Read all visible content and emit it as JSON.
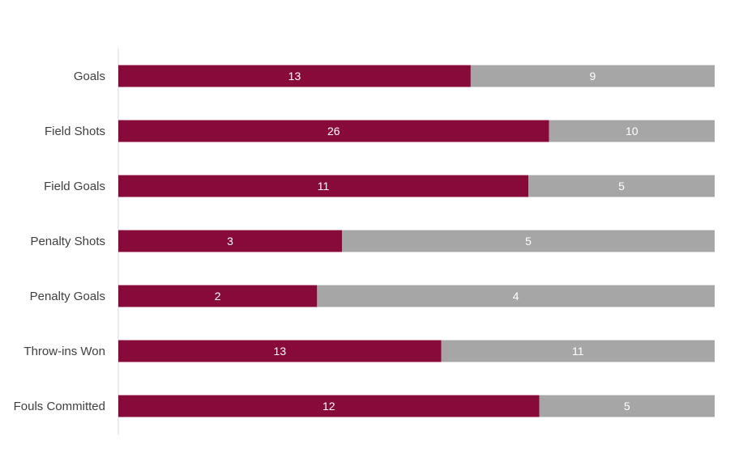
{
  "chart_data": {
    "type": "bar",
    "orientation": "horizontal",
    "stacking": "percent",
    "categories": [
      "Goals",
      "Field Shots",
      "Field Goals",
      "Penalty Shots",
      "Penalty Goals",
      "Throw-ins Won",
      "Fouls Committed"
    ],
    "series": [
      {
        "values": [
          13,
          26,
          11,
          3,
          2,
          13,
          12
        ],
        "color": "#880a3a"
      },
      {
        "values": [
          9,
          10,
          5,
          5,
          4,
          11,
          5
        ],
        "color": "#a6a6a6"
      }
    ],
    "title": "",
    "xlabel": "",
    "ylabel": "",
    "grid": false,
    "legend": "none"
  }
}
